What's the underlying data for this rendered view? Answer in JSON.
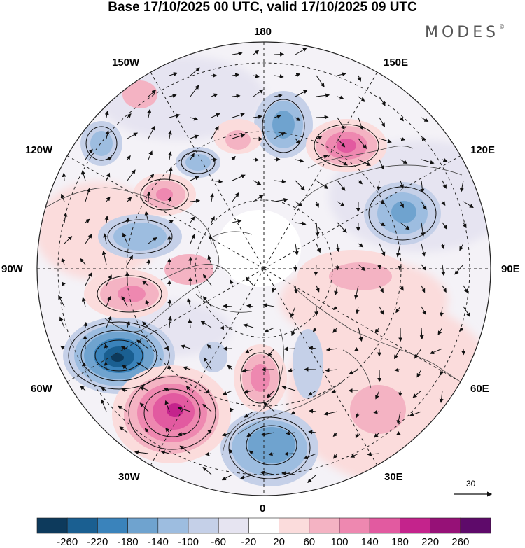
{
  "title": "Base 17/10/2025 00 UTC, valid 17/10/2025 09 UTC",
  "brand": "MODES",
  "brand_mark": "©",
  "longitude_labels": {
    "top": "180",
    "bottom": "0",
    "left": "90W",
    "right": "90E",
    "upper_left_1": "150W",
    "upper_left_2": "120W",
    "upper_right_1": "150E",
    "upper_right_2": "120E",
    "lower_left_1": "60W",
    "lower_left_2": "30W",
    "lower_right_1": "60E",
    "lower_right_2": "30E"
  },
  "reference_vector_label": "30",
  "colorbar": {
    "colors": [
      "#0d3a5c",
      "#1a5f91",
      "#3a83bb",
      "#6fa3cf",
      "#9dbde0",
      "#c5d0e8",
      "#e6e4f1",
      "#ffffff",
      "#fbdcdc",
      "#f4b3c3",
      "#ee88b0",
      "#e25aa0",
      "#c4238c",
      "#961177",
      "#5e0a6a"
    ],
    "ticks": [
      "-260",
      "-220",
      "-180",
      "-140",
      "-100",
      "-60",
      "-20",
      "20",
      "60",
      "100",
      "140",
      "180",
      "220",
      "260"
    ]
  }
}
